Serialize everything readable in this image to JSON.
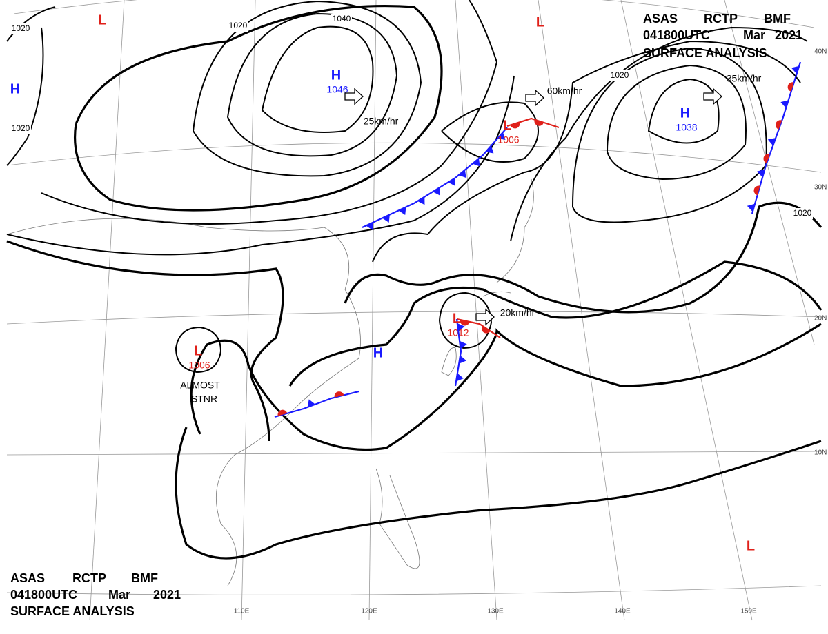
{
  "header": {
    "line1": [
      "ASAS",
      "RCTP",
      "BMF"
    ],
    "line2": [
      "041800UTC",
      "Mar",
      "2021"
    ],
    "line3": "SURFACE ANALYSIS"
  },
  "footer": {
    "line1": [
      "ASAS",
      "RCTP",
      "BMF"
    ],
    "line2": [
      "041800UTC",
      "Mar",
      "2021"
    ],
    "line3": "SURFACE ANALYSIS"
  },
  "pressure_centers": [
    {
      "type": "H",
      "value": 1046
    },
    {
      "type": "H",
      "value": 1038
    },
    {
      "type": "L",
      "value": 1006
    },
    {
      "type": "L",
      "value": 1012
    },
    {
      "type": "L",
      "value": 1006
    },
    {
      "type": "H"
    },
    {
      "type": "L"
    },
    {
      "type": "L"
    },
    {
      "type": "L"
    },
    {
      "type": "H"
    }
  ],
  "isobar_labels": [
    1020,
    1020,
    1020,
    1040,
    1020,
    1020
  ],
  "motions": [
    "25km/hr",
    "60km/hr",
    "35km/hr",
    "20km/hr"
  ],
  "annotations": [
    "ALMOST",
    "STNR"
  ],
  "lat_labels": [
    "40N",
    "30N",
    "20N",
    "10N"
  ],
  "lon_labels": [
    "110E",
    "120E",
    "130E",
    "140E",
    "150E"
  ]
}
